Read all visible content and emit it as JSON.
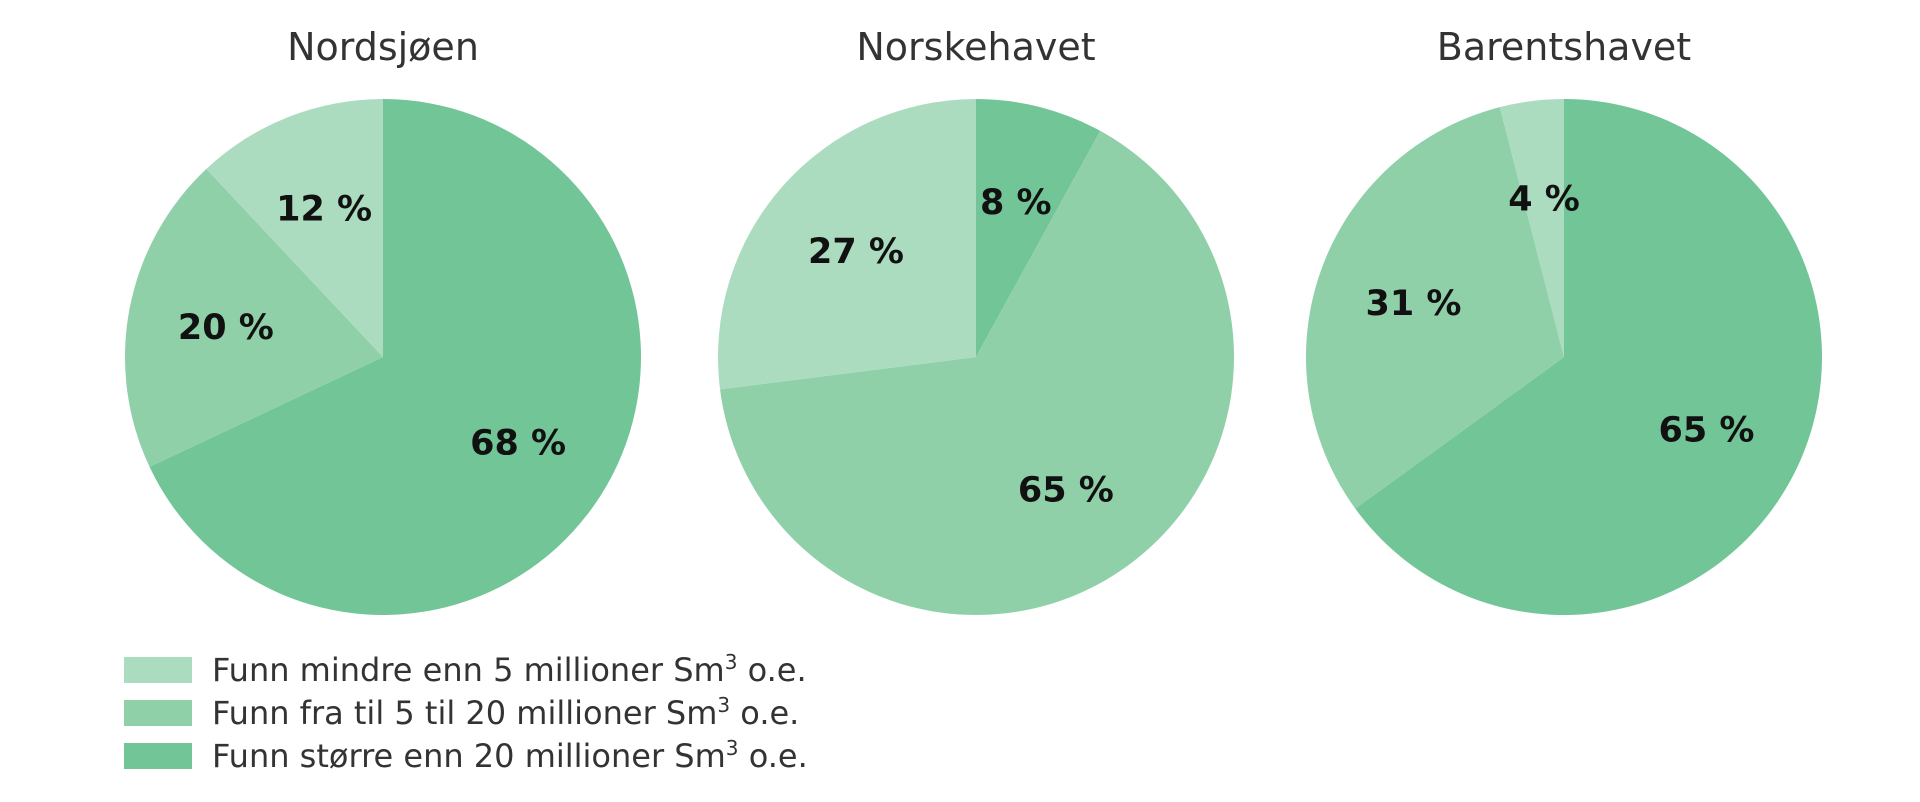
{
  "colors": {
    "small": "#acdcc0",
    "medium": "#8fd0a9",
    "large": "#72c597",
    "title_text": "#333333",
    "label_text": "#111111",
    "legend_text": "#333333"
  },
  "chart_data": {
    "type": "pie",
    "legend_placement": "bottom-left",
    "categories": [
      {
        "key": "small",
        "label": "Funn mindre enn 5 millioner Sm",
        "sup": "3",
        "suffix": " o.e."
      },
      {
        "key": "medium",
        "label": "Funn fra til 5 til 20 millioner Sm",
        "sup": "3",
        "suffix": " o.e."
      },
      {
        "key": "large",
        "label": "Funn større enn 20 millioner Sm",
        "sup": "3",
        "suffix": " o.e."
      }
    ],
    "charts": [
      {
        "title": "Nordsjøen",
        "slices": [
          {
            "key": "large",
            "value": 68,
            "label": "68 %"
          },
          {
            "key": "medium",
            "value": 20,
            "label": "20 %"
          },
          {
            "key": "small",
            "value": 12,
            "label": "12 %"
          }
        ]
      },
      {
        "title": "Norskehavet",
        "slices": [
          {
            "key": "large",
            "value": 8,
            "label": "8 %"
          },
          {
            "key": "medium",
            "value": 65,
            "label": "65 %"
          },
          {
            "key": "small",
            "value": 27,
            "label": "27 %"
          }
        ]
      },
      {
        "title": "Barentshavet",
        "slices": [
          {
            "key": "large",
            "value": 65,
            "label": "65 %"
          },
          {
            "key": "medium",
            "value": 31,
            "label": "31 %"
          },
          {
            "key": "small",
            "value": 4,
            "label": "4 %"
          }
        ]
      }
    ]
  }
}
